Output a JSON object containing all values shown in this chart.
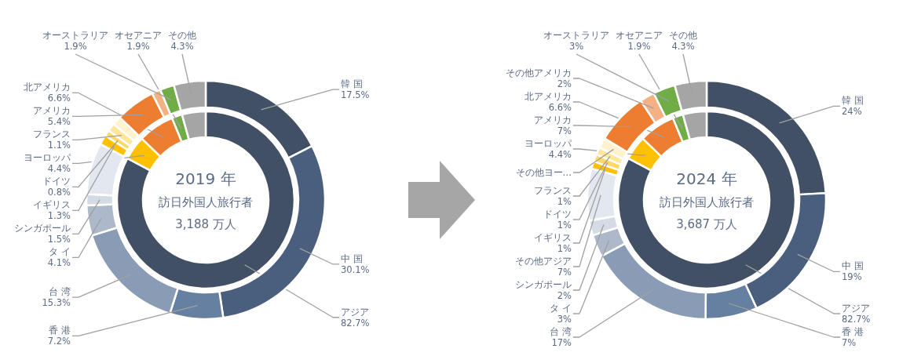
{
  "chart_data": [
    {
      "type": "donut",
      "title": "2019 年",
      "subtitle": "訪日外国人旅行者",
      "annotations": [
        "3,188 万人"
      ],
      "categories": [
        "アジア",
        "ヨーロッパ",
        "北アメリカ",
        "オセアニア",
        null
      ],
      "values": [
        82.7,
        4.4,
        6.6,
        1.9,
        4.3
      ],
      "value_labels": [
        "82.7%",
        "4.4%",
        "6.6%",
        "1.9%",
        null
      ],
      "colors": [
        "#425066",
        "#ffc000",
        "#ed7d31",
        "#70ad47",
        "#a5a5a5"
      ]
    },
    {
      "type": "donut",
      "categories": [
        "韓 国",
        "中 国",
        "香 港",
        "台 湾",
        "タ イ",
        "シンガポール",
        null,
        "イギリス",
        "ドイツ",
        "フランス",
        null,
        "アメリカ",
        null,
        "オーストラリア",
        "その他"
      ],
      "values": [
        17.5,
        30.1,
        7.2,
        15.3,
        4.1,
        1.5,
        7.0,
        1.3,
        0.8,
        1.1,
        1.2,
        5.4,
        1.2,
        1.9,
        4.3
      ],
      "value_labels": [
        "17.5%",
        "30.1%",
        "7.2%",
        "15.3%",
        "4.1%",
        "1.5%",
        null,
        "1.3%",
        "0.8%",
        "1.1%",
        null,
        "5.4%",
        null,
        "1.9%",
        "4.3%"
      ],
      "colors": [
        "#425066",
        "#4a5f7e",
        "#6580a0",
        "#8a9bb5",
        "#adb8ca",
        "#d5dbe5",
        "#e3e7ef",
        "#ffc000",
        "#ffd966",
        "#ffe699",
        "#fff2cc",
        "#ed7d31",
        "#f4b183",
        "#70ad47",
        "#a5a5a5"
      ]
    },
    {
      "type": "donut",
      "title": "2024 年",
      "subtitle": "訪日外国人旅行者",
      "annotations": [
        "3,687 万人"
      ],
      "categories": [
        "アジア",
        "ヨーロッパ",
        "北アメリカ",
        "オセアニア",
        null
      ],
      "values": [
        82.7,
        4.4,
        6.6,
        1.9,
        4.3
      ],
      "value_labels": [
        "82.7%",
        "4.4%",
        "6.6%",
        "1.9%",
        null
      ],
      "colors": [
        "#425066",
        "#ffc000",
        "#ed7d31",
        "#70ad47",
        "#a5a5a5"
      ]
    },
    {
      "type": "donut",
      "categories": [
        "韓 国",
        "中 国",
        "香 港",
        "台 湾",
        "タ イ",
        "シンガポール",
        "その他アジア",
        "イギリス",
        "ドイツ",
        "フランス",
        "その他ヨー…",
        "アメリカ",
        "その他アメリカ",
        "オーストラリア",
        "その他"
      ],
      "values": [
        24,
        19,
        7,
        17,
        3,
        2,
        7,
        1,
        1,
        1,
        1.4,
        7,
        2,
        3,
        4.3
      ],
      "value_labels": [
        "24%",
        "19%",
        "7%",
        "17%",
        "3%",
        "2%",
        "7%",
        "1%",
        "1%",
        "1%",
        null,
        "7%",
        "2%",
        "3%",
        "4.3%"
      ],
      "colors": [
        "#425066",
        "#4a5f7e",
        "#6580a0",
        "#8a9bb5",
        "#adb8ca",
        "#d5dbe5",
        "#e3e7ef",
        "#ffc000",
        "#ffd966",
        "#ffe699",
        "#fff2cc",
        "#ed7d31",
        "#f4b183",
        "#70ad47",
        "#a5a5a5"
      ]
    }
  ]
}
